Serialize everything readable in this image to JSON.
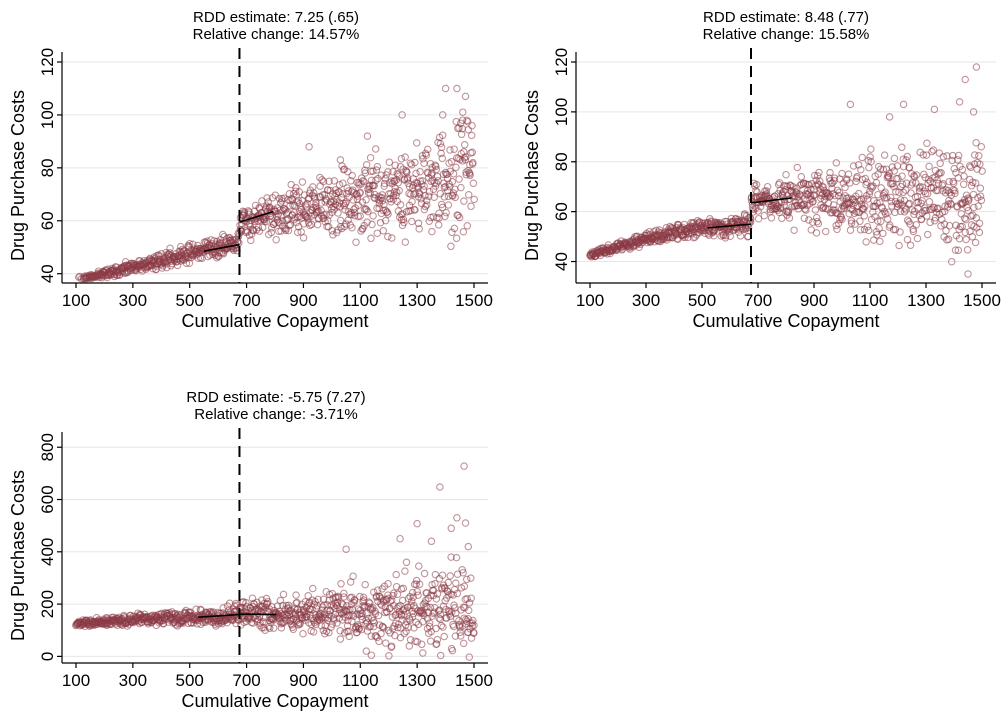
{
  "colors": {
    "marker": "#8b3a46",
    "fit_line": "#000000",
    "grid": "#e6e6e6"
  },
  "chart_data": [
    {
      "type": "scatter",
      "title": "RDD estimate: 7.25 (.65)",
      "subtitle": "Relative change: 14.57%",
      "xlabel": "Cumulative Copayment",
      "ylabel": "Drug Purchase Costs",
      "xlim": [
        100,
        1500
      ],
      "ylim": [
        38,
        120
      ],
      "xticks": [
        100,
        300,
        500,
        700,
        900,
        1100,
        1300,
        1500
      ],
      "yticks": [
        40,
        60,
        80,
        100,
        120
      ],
      "cutoff": 675,
      "grid": true,
      "fit_left": [
        [
          550,
          48.5
        ],
        [
          675,
          51.0
        ]
      ],
      "fit_right": [
        [
          675,
          59.5
        ],
        [
          795,
          63.5
        ]
      ],
      "trend": [
        [
          100,
          37.5
        ],
        [
          200,
          39.8
        ],
        [
          300,
          42.2
        ],
        [
          400,
          45.0
        ],
        [
          500,
          47.8
        ],
        [
          600,
          50.0
        ],
        [
          674,
          51.5
        ],
        [
          676,
          59.0
        ],
        [
          800,
          62.0
        ],
        [
          900,
          63.5
        ],
        [
          1000,
          65.5
        ],
        [
          1100,
          68.0
        ],
        [
          1200,
          70.5
        ],
        [
          1300,
          73.0
        ],
        [
          1400,
          75.5
        ],
        [
          1500,
          78.0
        ]
      ],
      "spread": [
        [
          100,
          0.5
        ],
        [
          400,
          1.4
        ],
        [
          674,
          2.2
        ],
        [
          676,
          3.0
        ],
        [
          900,
          4.5
        ],
        [
          1100,
          6.5
        ],
        [
          1300,
          8.0
        ],
        [
          1500,
          10.5
        ]
      ],
      "outliers": [
        [
          1247,
          100
        ],
        [
          1400,
          110
        ],
        [
          1440,
          110
        ],
        [
          1470,
          107
        ],
        [
          1390,
          100
        ],
        [
          1125,
          92
        ],
        [
          1460,
          98
        ],
        [
          1030,
          83
        ],
        [
          920,
          88
        ]
      ],
      "seed": 11
    },
    {
      "type": "scatter",
      "title": "RDD estimate: 8.48 (.77)",
      "subtitle": "Relative change: 15.58%",
      "xlabel": "Cumulative Copayment",
      "ylabel": "Drug Purchase Costs",
      "xlim": [
        100,
        1500
      ],
      "ylim": [
        33,
        120
      ],
      "xticks": [
        100,
        300,
        500,
        700,
        900,
        1100,
        1300,
        1500
      ],
      "yticks": [
        40,
        60,
        80,
        100,
        120
      ],
      "cutoff": 675,
      "grid": true,
      "fit_left": [
        [
          520,
          53.5
        ],
        [
          675,
          55.0
        ]
      ],
      "fit_right": [
        [
          675,
          63.5
        ],
        [
          820,
          65.5
        ]
      ],
      "trend": [
        [
          100,
          42.5
        ],
        [
          200,
          46.0
        ],
        [
          300,
          49.0
        ],
        [
          400,
          51.5
        ],
        [
          500,
          53.5
        ],
        [
          600,
          54.5
        ],
        [
          674,
          55.0
        ],
        [
          676,
          64.0
        ],
        [
          800,
          65.0
        ],
        [
          900,
          65.5
        ],
        [
          1100,
          66.0
        ],
        [
          1300,
          66.0
        ],
        [
          1500,
          66.5
        ]
      ],
      "spread": [
        [
          100,
          0.7
        ],
        [
          400,
          1.4
        ],
        [
          674,
          2.2
        ],
        [
          676,
          3.0
        ],
        [
          900,
          5.5
        ],
        [
          1100,
          8.0
        ],
        [
          1300,
          9.5
        ],
        [
          1500,
          11.0
        ]
      ],
      "outliers": [
        [
          1480,
          118
        ],
        [
          1440,
          113
        ],
        [
          1030,
          103
        ],
        [
          1220,
          103
        ],
        [
          1330,
          101
        ],
        [
          1420,
          104
        ],
        [
          1450,
          35
        ],
        [
          1470,
          100
        ],
        [
          1170,
          98
        ]
      ],
      "seed": 23
    },
    {
      "type": "scatter",
      "title": "RDD estimate: -5.75 (7.27)",
      "subtitle": "Relative change: -3.71%",
      "xlabel": "Cumulative Copayment",
      "ylabel": "Drug Purchase Costs",
      "xlim": [
        100,
        1500
      ],
      "ylim": [
        -10,
        820
      ],
      "xticks": [
        100,
        300,
        500,
        700,
        900,
        1100,
        1300,
        1500
      ],
      "yticks": [
        0,
        200,
        400,
        600,
        800
      ],
      "cutoff": 675,
      "grid": true,
      "fit_left": [
        [
          530,
          150
        ],
        [
          675,
          160
        ]
      ],
      "fit_right": [
        [
          675,
          162
        ],
        [
          805,
          160
        ]
      ],
      "trend": [
        [
          100,
          125
        ],
        [
          300,
          138
        ],
        [
          500,
          150
        ],
        [
          674,
          162
        ],
        [
          676,
          165
        ],
        [
          900,
          165
        ],
        [
          1100,
          170
        ],
        [
          1300,
          175
        ],
        [
          1500,
          180
        ]
      ],
      "spread": [
        [
          100,
          5
        ],
        [
          400,
          12
        ],
        [
          674,
          20
        ],
        [
          676,
          25
        ],
        [
          900,
          35
        ],
        [
          1100,
          55
        ],
        [
          1300,
          75
        ],
        [
          1500,
          95
        ]
      ],
      "outliers": [
        [
          1465,
          728
        ],
        [
          1380,
          648
        ],
        [
          1440,
          530
        ],
        [
          1470,
          510
        ],
        [
          1300,
          508
        ],
        [
          1420,
          490
        ],
        [
          1240,
          450
        ],
        [
          1350,
          440
        ],
        [
          1480,
          420
        ],
        [
          1050,
          410
        ]
      ],
      "seed": 37
    }
  ]
}
